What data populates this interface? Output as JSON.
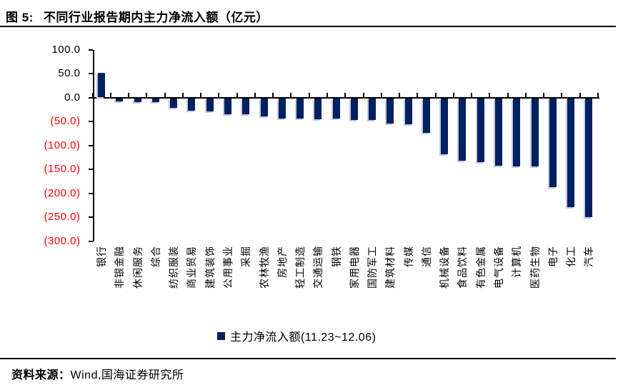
{
  "title": {
    "prefix": "图 5:",
    "text": "不同行业报告期内主力净流入额（亿元）"
  },
  "legend": {
    "label": "主力净流入额(11.23~12.06)"
  },
  "source": {
    "label": "资料来源：",
    "text": "Wind,国海证券研究所"
  },
  "colors": {
    "bar": "#002060",
    "bar_highlight": "#c3c8e4",
    "axis": "#000000",
    "positive_tick_label": "#000000",
    "negative_tick_label": "#ff0000"
  },
  "chart_data": {
    "type": "bar",
    "title": "不同行业报告期内主力净流入额（亿元）",
    "series_name": "主力净流入额(11.23~12.06)",
    "categories": [
      "银行",
      "非银金融",
      "休闲服务",
      "综合",
      "纺织服装",
      "商业贸易",
      "建筑装饰",
      "公用事业",
      "采掘",
      "农林牧渔",
      "房地产",
      "轻工制造",
      "交通运输",
      "钢铁",
      "家用电器",
      "国防军工",
      "建筑材料",
      "传媒",
      "通信",
      "机械设备",
      "食品饮料",
      "有色金属",
      "电气设备",
      "计算机",
      "医药生物",
      "电子",
      "化工",
      "汽车"
    ],
    "values": [
      52,
      -6,
      -8,
      -8,
      -20,
      -26,
      -27,
      -33,
      -34,
      -38,
      -42,
      -43,
      -44,
      -43,
      -45,
      -46,
      -53,
      -54,
      -73,
      -117,
      -131,
      -133,
      -141,
      -143,
      -143,
      -186,
      -228,
      -248
    ],
    "ylim": [
      -300,
      100
    ],
    "ytick_interval": 50,
    "yticks": [
      100,
      50,
      0,
      -50,
      -100,
      -150,
      -200,
      -250,
      -300
    ],
    "ytick_labels": [
      "100.0",
      "50.0",
      "0.0",
      "(50.0)",
      "(100.0)",
      "(150.0)",
      "(200.0)",
      "(250.0)",
      "(300.0)"
    ],
    "grid": false,
    "legend_position": "bottom"
  }
}
